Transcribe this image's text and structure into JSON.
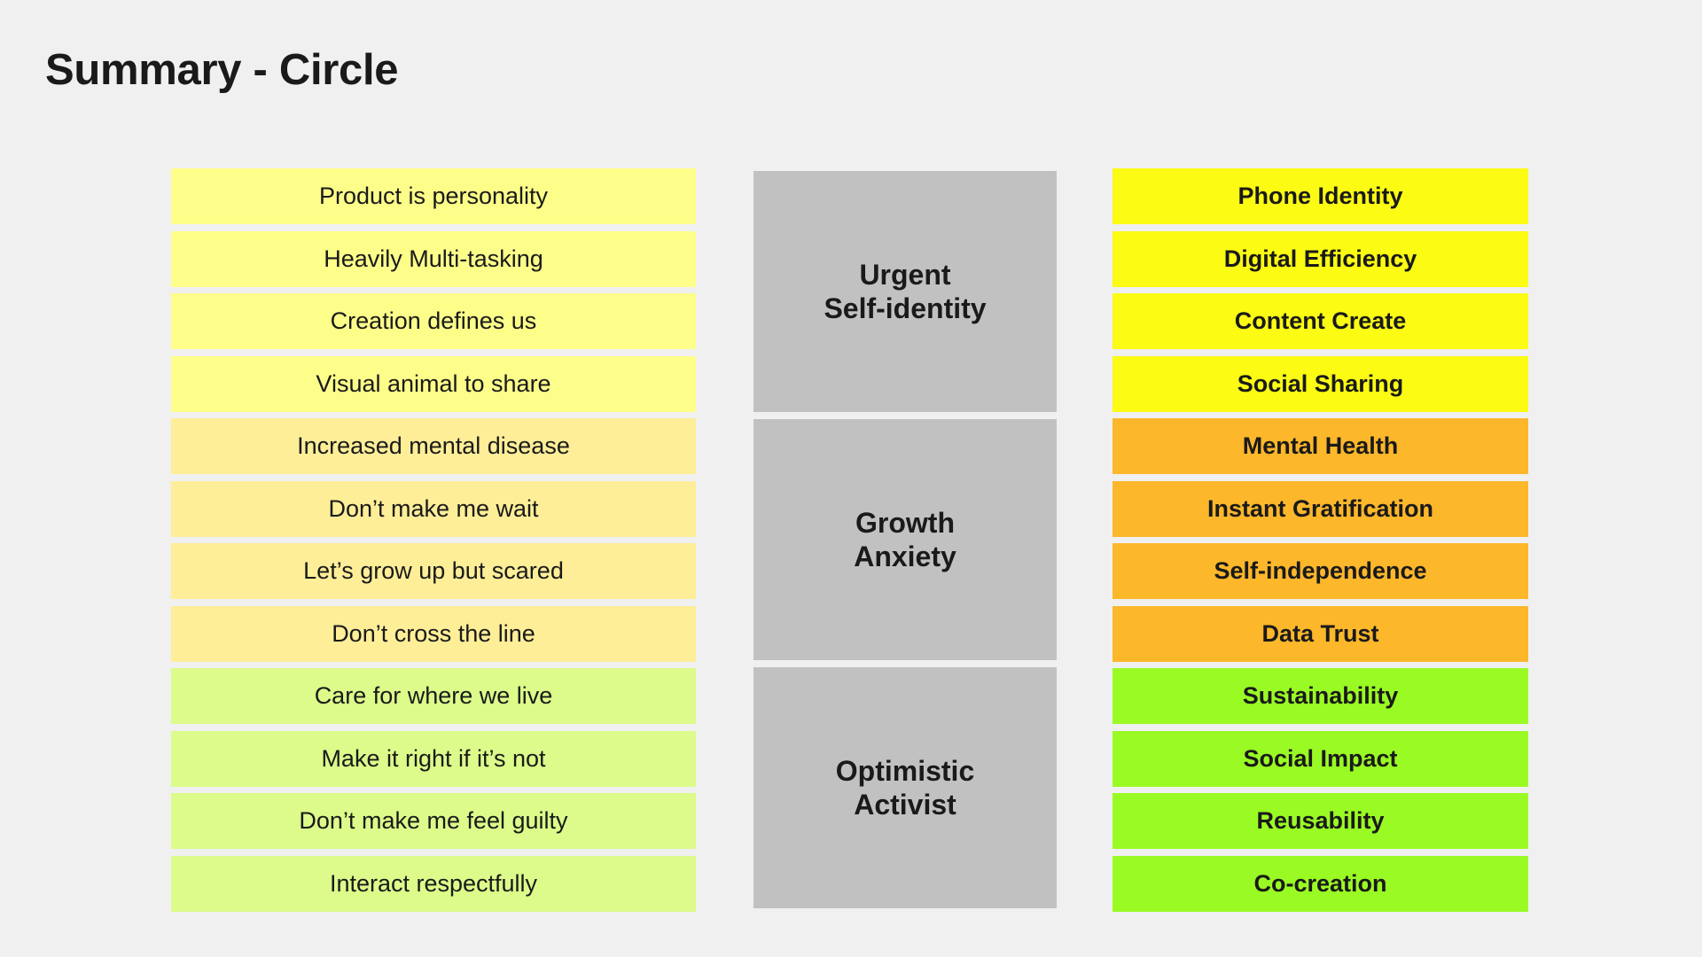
{
  "title": "Summary - Circle",
  "colors": {
    "background": "#f0f0f0",
    "group_block": "#c1c1c1",
    "insight_group_1": "#fdfd8a",
    "insight_group_2": "#feee98",
    "insight_group_3": "#dcfb8a",
    "theme_group_1": "#fbfb14",
    "theme_group_2": "#fdb72b",
    "theme_group_3": "#9afb24"
  },
  "insights": [
    {
      "label": "Product is personality",
      "group": 1
    },
    {
      "label": "Heavily Multi-tasking",
      "group": 1
    },
    {
      "label": "Creation defines us",
      "group": 1
    },
    {
      "label": "Visual animal to share",
      "group": 1
    },
    {
      "label": "Increased mental disease",
      "group": 2
    },
    {
      "label": "Don’t make me wait",
      "group": 2
    },
    {
      "label": "Let’s grow up but scared",
      "group": 2
    },
    {
      "label": "Don’t cross the line",
      "group": 2
    },
    {
      "label": "Care for where we live",
      "group": 3
    },
    {
      "label": "Make it right if it’s not",
      "group": 3
    },
    {
      "label": "Don’t make me feel guilty",
      "group": 3
    },
    {
      "label": "Interact respectfully",
      "group": 3
    }
  ],
  "groups": [
    {
      "label": "Urgent\nSelf-identity"
    },
    {
      "label": "Growth\nAnxiety"
    },
    {
      "label": "Optimistic\nActivist"
    }
  ],
  "themes": [
    {
      "label": "Phone Identity",
      "group": 1
    },
    {
      "label": "Digital Efficiency",
      "group": 1
    },
    {
      "label": "Content Create",
      "group": 1
    },
    {
      "label": "Social Sharing",
      "group": 1
    },
    {
      "label": "Mental Health",
      "group": 2
    },
    {
      "label": "Instant Gratification",
      "group": 2
    },
    {
      "label": "Self-independence",
      "group": 2
    },
    {
      "label": "Data Trust",
      "group": 2
    },
    {
      "label": "Sustainability",
      "group": 3
    },
    {
      "label": "Social Impact",
      "group": 3
    },
    {
      "label": "Reusability",
      "group": 3
    },
    {
      "label": "Co-creation",
      "group": 3
    }
  ]
}
